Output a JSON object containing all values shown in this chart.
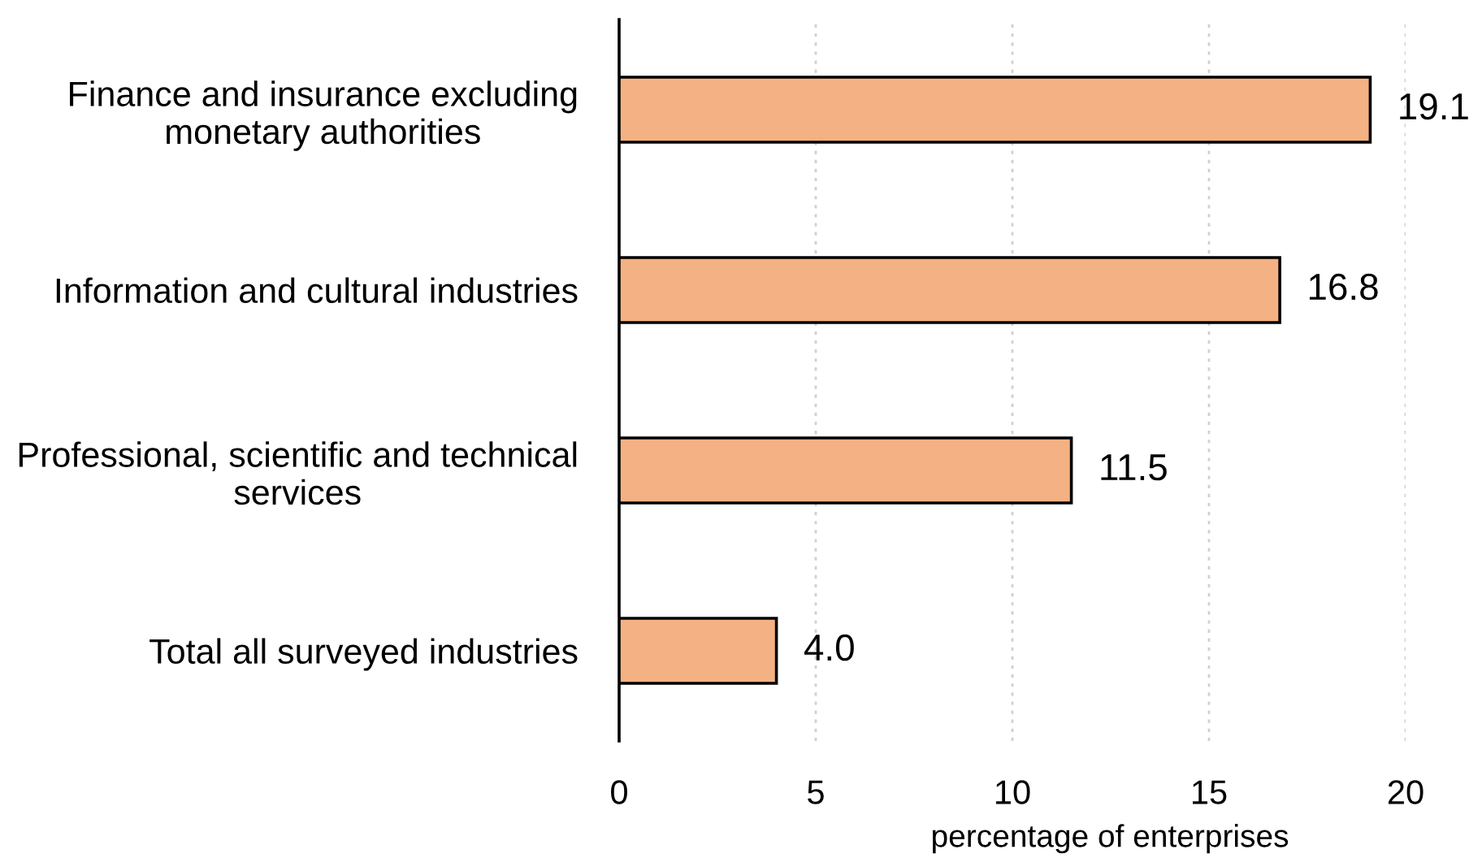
{
  "chart_data": {
    "type": "bar",
    "orientation": "horizontal",
    "categories": [
      "Finance and insurance excluding\nmonetary authorities",
      "Information and cultural industries",
      "Professional, scientific and technical\nservices",
      "Total all surveyed industries"
    ],
    "values": [
      19.1,
      16.8,
      11.5,
      4.0
    ],
    "value_labels": [
      "19.1",
      "16.8",
      "11.5",
      "4.0"
    ],
    "color": "#f4b183",
    "xlabel": "percentage of enterprises",
    "xlim": [
      0,
      20
    ],
    "xticks": [
      0,
      5,
      10,
      15,
      20
    ],
    "grid": "x"
  }
}
